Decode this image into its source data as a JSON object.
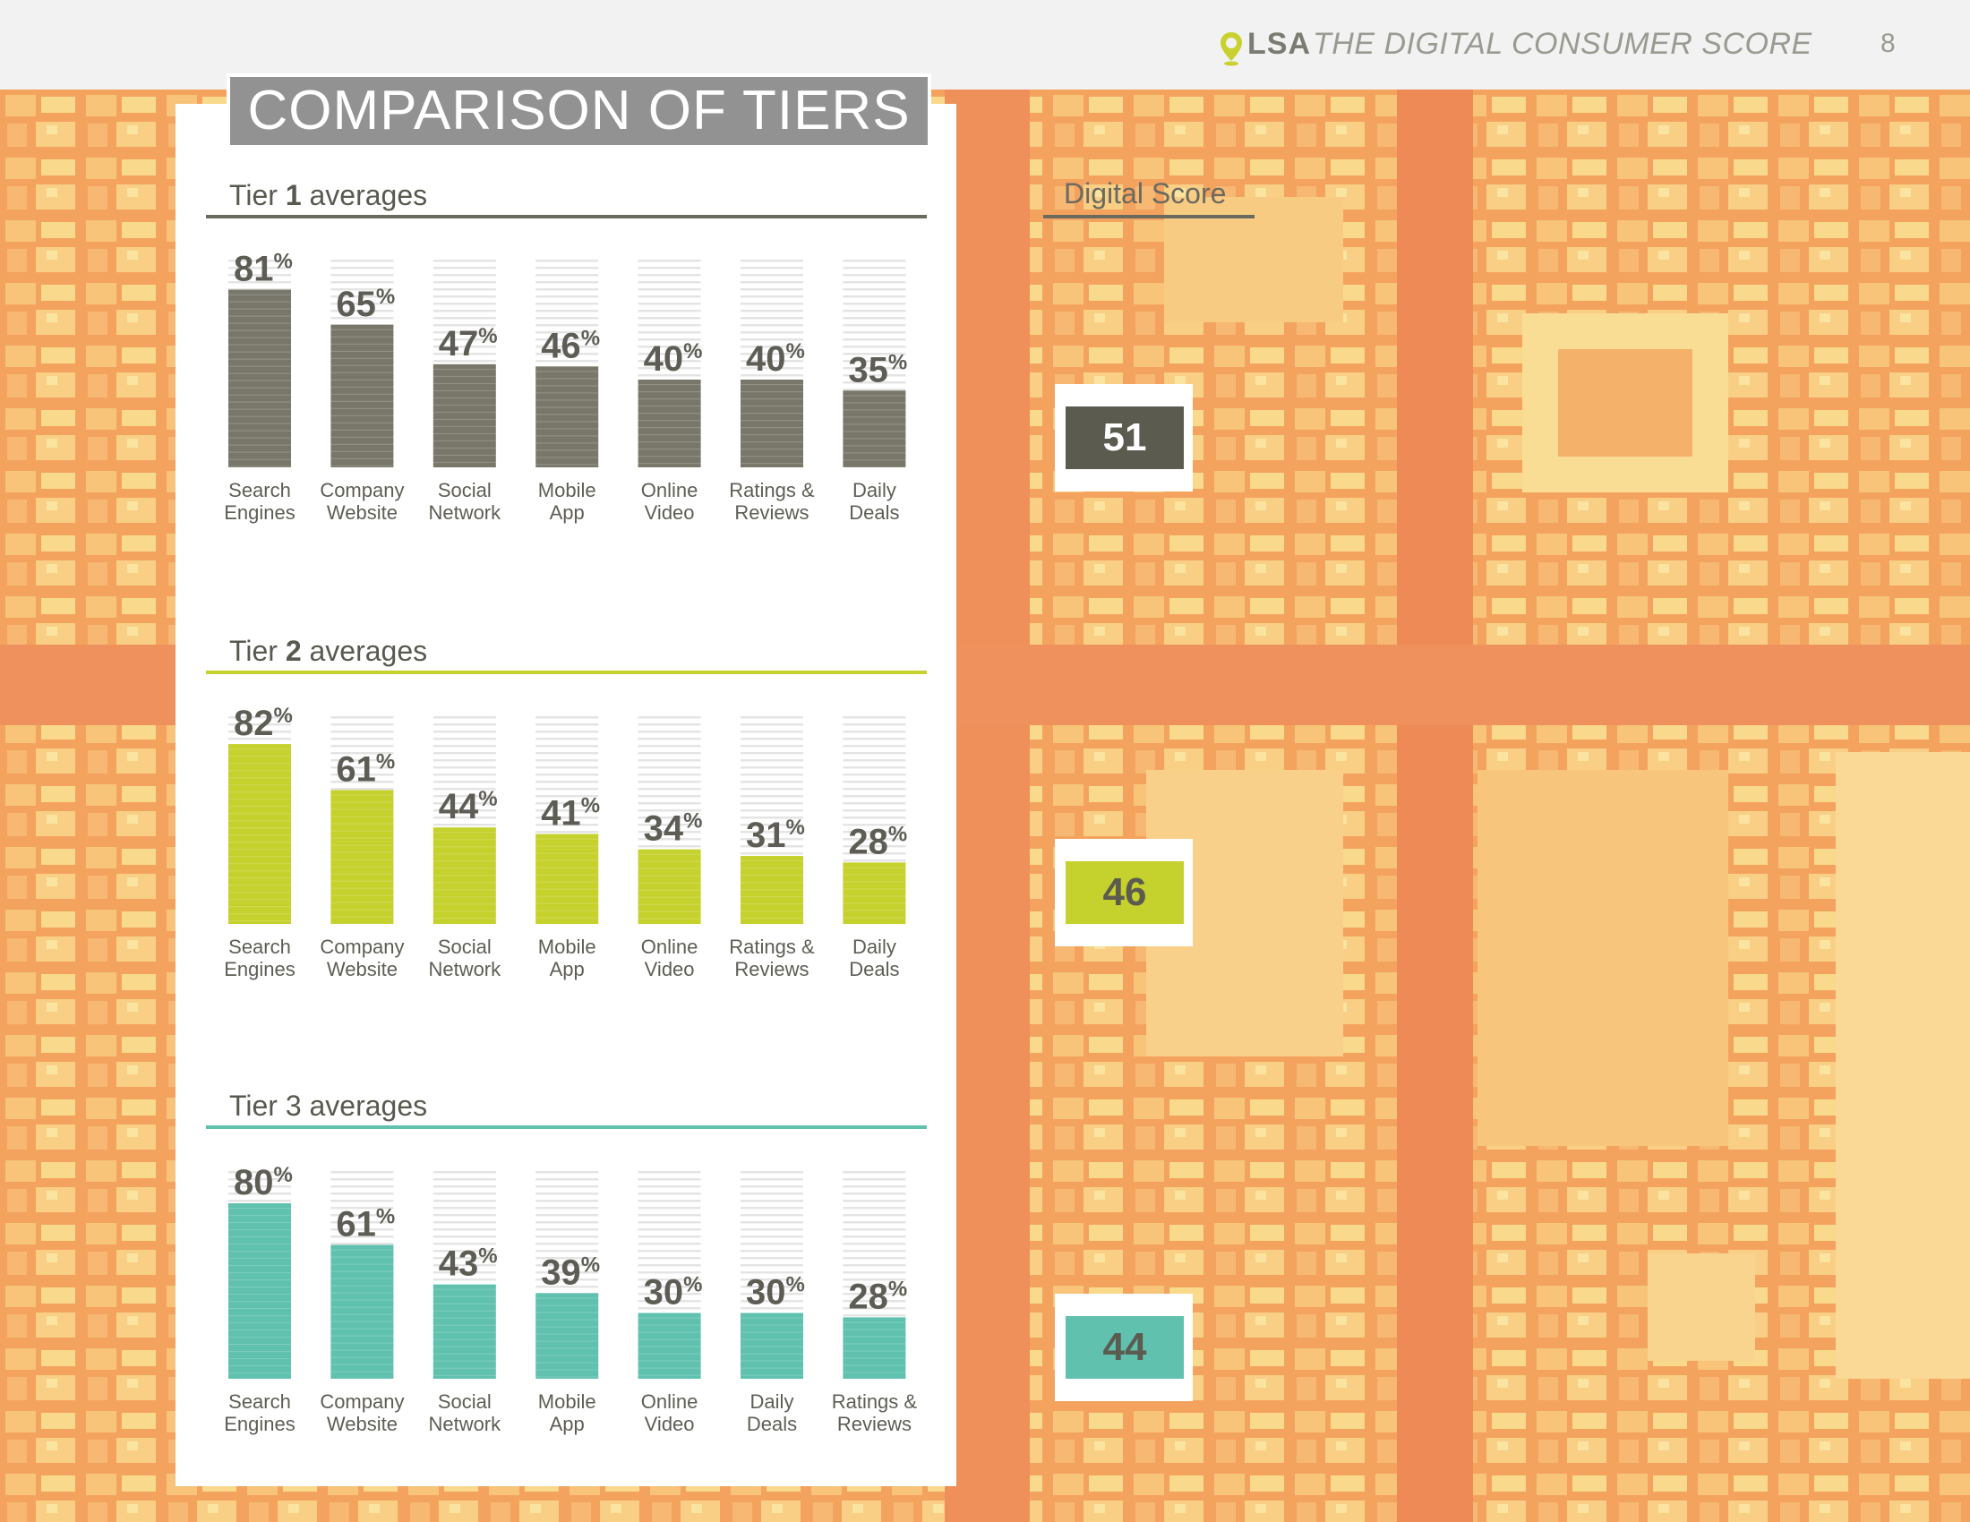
{
  "header": {
    "logo": "LSA",
    "report_title": "THE DIGITAL CONSUMER SCORE",
    "page_number": "8",
    "icon": "map-pin-icon"
  },
  "page_title": "COMPARISON OF TIERS",
  "score_panel": {
    "label": "Digital Score"
  },
  "chart_data": [
    {
      "type": "bar",
      "title_prefix": "Tier ",
      "title_number": "1",
      "title_suffix": " averages",
      "color": "#78776a",
      "score": "51",
      "categories": [
        "Search Engines",
        "Company Website",
        "Social Network",
        "Mobile App",
        "Online Video",
        "Ratings & Reviews",
        "Daily Deals"
      ],
      "values": [
        81,
        65,
        47,
        46,
        40,
        40,
        35
      ],
      "unit": "%",
      "ylim": [
        0,
        100
      ]
    },
    {
      "type": "bar",
      "title_prefix": "Tier ",
      "title_number": "2",
      "title_suffix": " averages",
      "color": "#c5d12c",
      "score": "46",
      "categories": [
        "Search Engines",
        "Company Website",
        "Social Network",
        "Mobile App",
        "Online Video",
        "Ratings & Reviews",
        "Daily Deals"
      ],
      "values": [
        82,
        61,
        44,
        41,
        34,
        31,
        28
      ],
      "unit": "%",
      "ylim": [
        0,
        100
      ]
    },
    {
      "type": "bar",
      "title_prefix": "",
      "title_number": "",
      "title_suffix": "Tier 3 averages",
      "color": "#5fc1ae",
      "score": "44",
      "categories": [
        "Search Engines",
        "Company Website",
        "Social Network",
        "Mobile App",
        "Online Video",
        "Daily Deals",
        "Ratings & Reviews"
      ],
      "values": [
        80,
        61,
        43,
        39,
        30,
        30,
        28
      ],
      "unit": "%",
      "ylim": [
        0,
        100
      ]
    }
  ]
}
